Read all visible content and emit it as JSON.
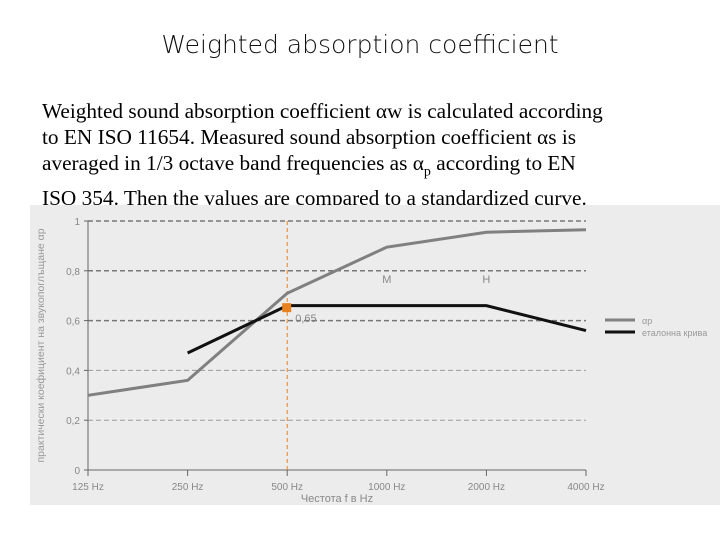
{
  "title": "Weighted absorption coefficient",
  "body": {
    "line1": "Weighted sound absorption coefficient αw is calculated according",
    "line2": "to EN ISO 11654. Measured sound absorption coefficient αs is",
    "line3_pre": "averaged in 1/3 octave band frequencies as α",
    "line3_sub": "p",
    "line3_post": " according to EN",
    "line4": "ISO 354. Then the values are compared to a standardized curve."
  },
  "chart_data": {
    "type": "line",
    "xlabel": "Честота f в Hz",
    "ylabel": "практически коефициент на звукопоглъщане αp",
    "categories": [
      "125 Hz",
      "250 Hz",
      "500 Hz",
      "1000 Hz",
      "2000 Hz",
      "4000 Hz"
    ],
    "yticks": [
      "0",
      "0,2",
      "0,4",
      "0,6",
      "0,8",
      "1"
    ],
    "ylim": [
      0,
      1
    ],
    "grid": true,
    "legend": "right",
    "series": [
      {
        "name": "αp",
        "color": "#808080",
        "values": [
          0.3,
          0.36,
          0.71,
          0.895,
          0.955,
          0.965
        ]
      },
      {
        "name": "еталонна крива",
        "color": "#111111",
        "values": [
          null,
          0.47,
          0.66,
          0.66,
          0.66,
          0.56
        ]
      }
    ],
    "marker": {
      "category": "500 Hz",
      "value": 0.65,
      "label": "0,65",
      "color": "#e8821e"
    },
    "annotations": [
      {
        "text": "M",
        "category": "1000 Hz"
      },
      {
        "text": "H",
        "category": "2000 Hz"
      }
    ]
  }
}
